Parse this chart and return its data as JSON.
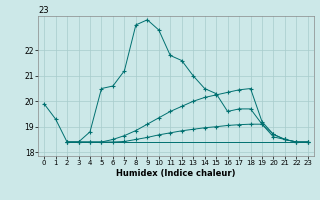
{
  "title": "23",
  "xlabel": "Humidex (Indice chaleur)",
  "background_color": "#cce8e8",
  "grid_color": "#a8cccc",
  "line_color": "#007070",
  "xlim": [
    -0.5,
    23.5
  ],
  "ylim": [
    17.85,
    23.35
  ],
  "yticks": [
    18,
    19,
    20,
    21,
    22
  ],
  "xticks": [
    0,
    1,
    2,
    3,
    4,
    5,
    6,
    7,
    8,
    9,
    10,
    11,
    12,
    13,
    14,
    15,
    16,
    17,
    18,
    19,
    20,
    21,
    22,
    23
  ],
  "series": [
    {
      "x": [
        0,
        1,
        2,
        3,
        4,
        5,
        6,
        7,
        8,
        9,
        10,
        11,
        12,
        13,
        14,
        15,
        16,
        17,
        18,
        19,
        20,
        21,
        22,
        23
      ],
      "y": [
        19.9,
        19.3,
        18.4,
        18.4,
        18.8,
        20.5,
        20.6,
        21.2,
        23.0,
        23.2,
        22.8,
        21.8,
        21.6,
        21.0,
        20.5,
        20.3,
        19.6,
        19.7,
        19.7,
        19.1,
        18.7,
        18.5,
        18.4,
        18.4
      ],
      "marker": true
    },
    {
      "x": [
        2,
        3,
        4,
        5,
        6,
        7,
        8,
        9,
        10,
        11,
        12,
        13,
        14,
        15,
        16,
        17,
        18,
        19,
        20,
        21,
        22,
        23
      ],
      "y": [
        18.4,
        18.4,
        18.4,
        18.4,
        18.5,
        18.65,
        18.85,
        19.1,
        19.35,
        19.6,
        19.8,
        20.0,
        20.15,
        20.25,
        20.35,
        20.45,
        20.5,
        19.2,
        18.7,
        18.5,
        18.4,
        18.4
      ],
      "marker": true
    },
    {
      "x": [
        2,
        3,
        4,
        5,
        6,
        7,
        8,
        9,
        10,
        11,
        12,
        13,
        14,
        15,
        16,
        17,
        18,
        19,
        20,
        21,
        22,
        23
      ],
      "y": [
        18.4,
        18.4,
        18.4,
        18.4,
        18.4,
        18.42,
        18.5,
        18.58,
        18.68,
        18.76,
        18.84,
        18.9,
        18.96,
        19.0,
        19.05,
        19.08,
        19.1,
        19.1,
        18.6,
        18.5,
        18.4,
        18.4
      ],
      "marker": true
    },
    {
      "x": [
        2,
        23
      ],
      "y": [
        18.4,
        18.4
      ],
      "marker": false
    }
  ]
}
